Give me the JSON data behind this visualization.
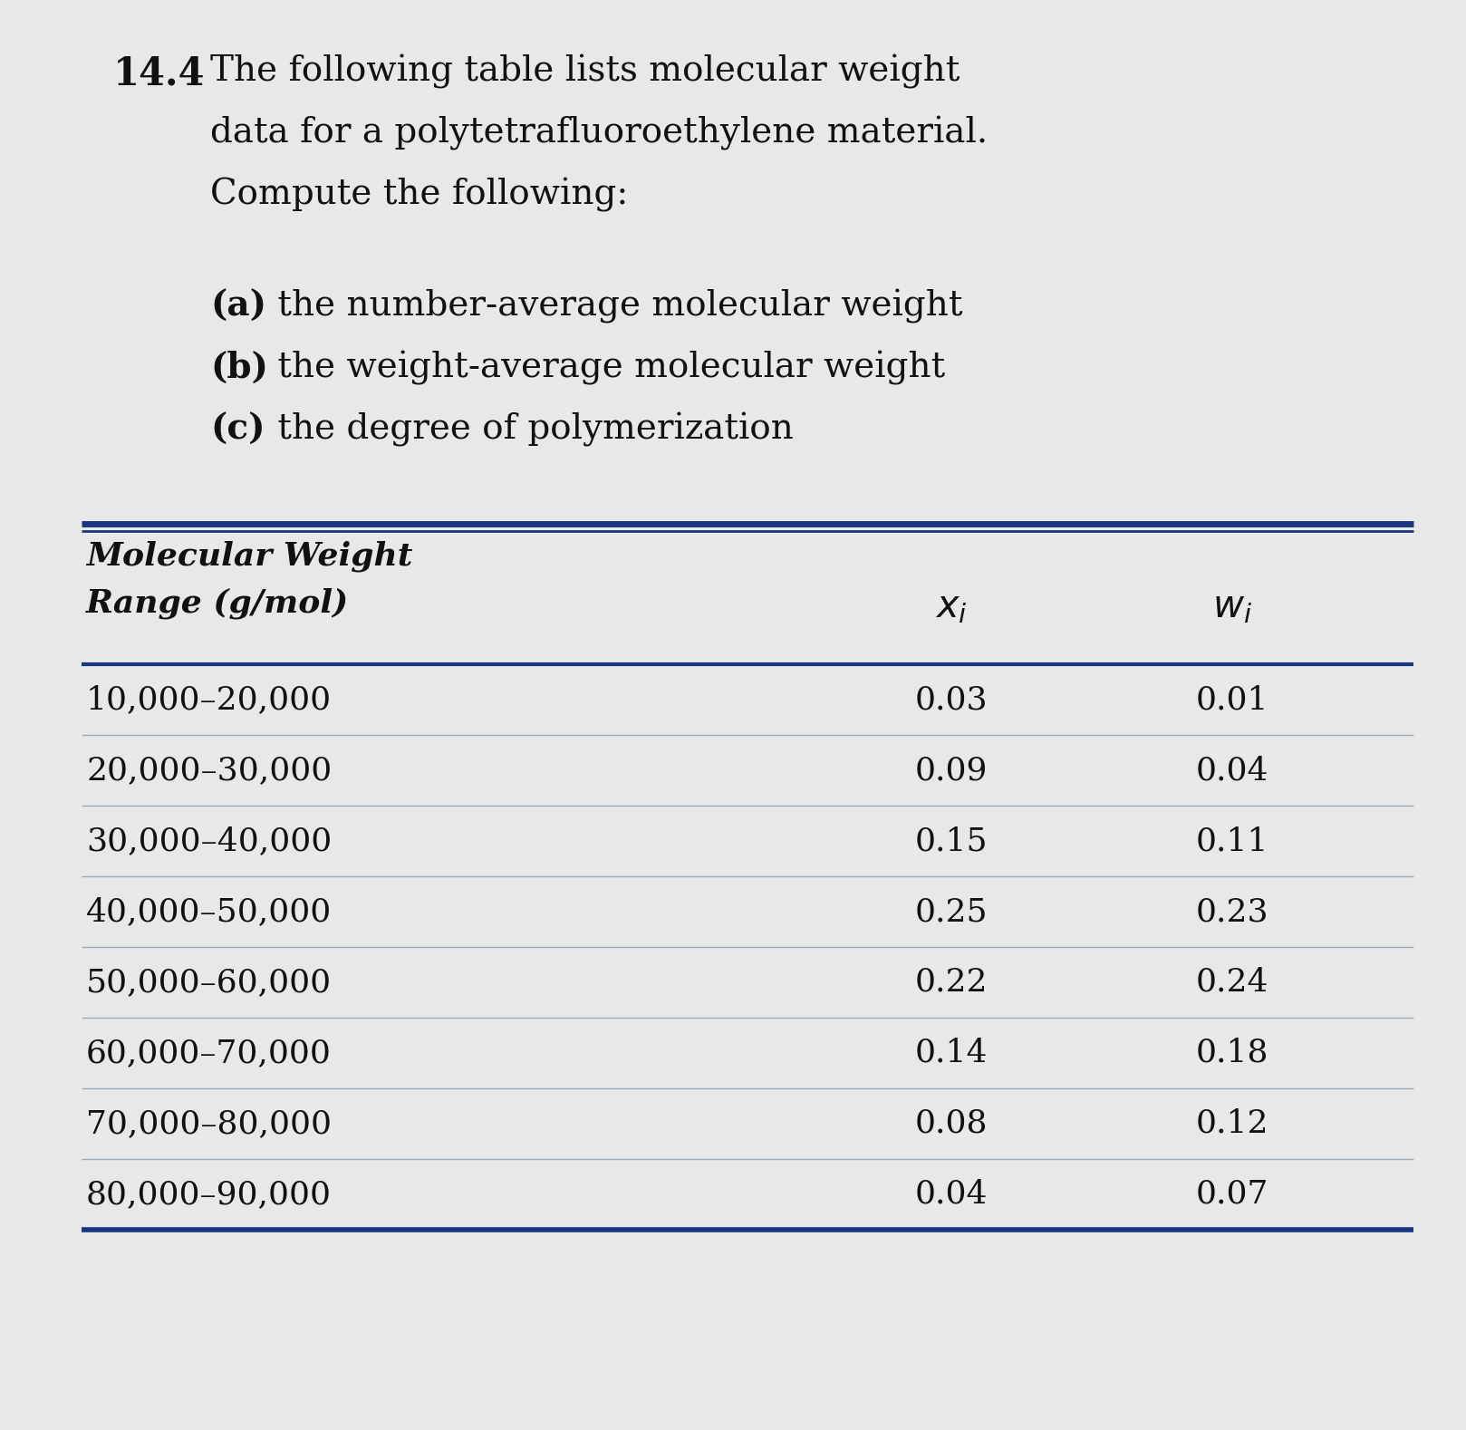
{
  "problem_number": "14.4",
  "intro_lines": [
    "The following table lists molecular weight",
    "data for a polytetrafluoroethylene material.",
    "Compute the following:"
  ],
  "list_items_bold": [
    "(a)",
    "(b)",
    "(c)"
  ],
  "list_items_text": [
    " the number-average molecular weight",
    " the weight-average molecular weight",
    " the degree of polymerization"
  ],
  "col0_header_line1": "Molecular Weight",
  "col0_header_line2": "Range (g/mol)",
  "col1_header": "$x_i$",
  "col2_header": "$w_i$",
  "table_data": [
    [
      "10,000–20,000",
      "0.03",
      "0.01"
    ],
    [
      "20,000–30,000",
      "0.09",
      "0.04"
    ],
    [
      "30,000–40,000",
      "0.15",
      "0.11"
    ],
    [
      "40,000–50,000",
      "0.25",
      "0.23"
    ],
    [
      "50,000–60,000",
      "0.22",
      "0.24"
    ],
    [
      "60,000–70,000",
      "0.14",
      "0.18"
    ],
    [
      "70,000–80,000",
      "0.08",
      "0.12"
    ],
    [
      "80,000–90,000",
      "0.04",
      "0.07"
    ]
  ],
  "bg_color": "#e8e8e8",
  "text_color": "#111111",
  "table_bg": "#e0e4e8",
  "header_line_color": "#1a3580",
  "row_line_color": "#9aaabb",
  "font_size_intro": 28,
  "font_size_problem": 30,
  "font_size_list": 28,
  "font_size_col_header": 26,
  "font_size_table_data": 26
}
